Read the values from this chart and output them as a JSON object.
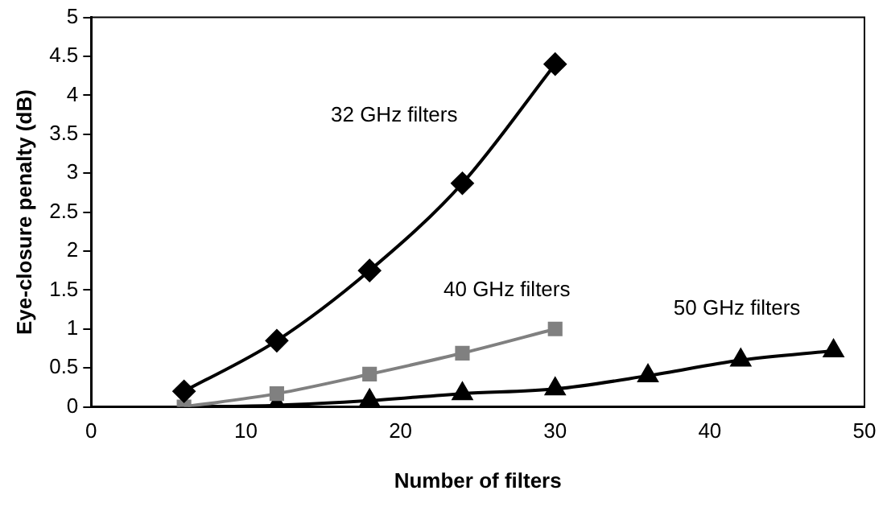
{
  "chart_data": {
    "type": "line",
    "xlabel": "Number of filters",
    "ylabel": "Eye-closure penalty (dB)",
    "xlim": [
      0,
      50
    ],
    "xticks": [
      0,
      10,
      20,
      30,
      40,
      50
    ],
    "ylim": [
      0,
      5
    ],
    "yticks": [
      0,
      0.5,
      1,
      1.5,
      2,
      2.5,
      3,
      3.5,
      4,
      4.5,
      5
    ],
    "grid": false,
    "legend": false,
    "series": [
      {
        "name": "32 GHz filters",
        "color": "#000000",
        "marker": "diamond",
        "x": [
          6,
          12,
          18,
          24,
          30
        ],
        "values": [
          0.2,
          0.85,
          1.75,
          2.87,
          4.4
        ]
      },
      {
        "name": "40 GHz filters",
        "color": "#808080",
        "marker": "square",
        "x": [
          6,
          12,
          18,
          24,
          30
        ],
        "values": [
          0,
          0.17,
          0.42,
          0.69,
          1.0
        ]
      },
      {
        "name": "50 GHz filters",
        "color": "#000000",
        "marker": "triangle",
        "x": [
          6,
          12,
          18,
          24,
          30,
          36,
          42,
          48
        ],
        "values": [
          0,
          0.02,
          0.08,
          0.17,
          0.23,
          0.4,
          0.6,
          0.72
        ]
      }
    ]
  }
}
